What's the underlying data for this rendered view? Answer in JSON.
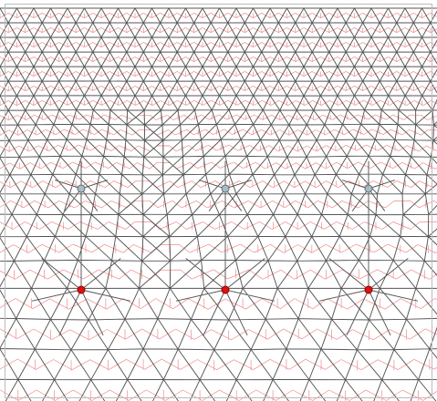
{
  "diagram": {
    "type": "triangulated lattice with dual polygon mesh",
    "colors": {
      "background": "#ffffff",
      "lattice_edges": "#555555",
      "dual_mesh": "#f08a8a",
      "defect_top_fill": "#a9bcc6",
      "defect_top_stroke": "#5e6c74",
      "defect_bottom_fill": "#e01010",
      "defect_bottom_stroke": "#8c0000",
      "frame": "#bbbbbb"
    },
    "defect_pairs": 3,
    "defect_top_icon": "grey-vertex-dot",
    "defect_bottom_icon": "red-vertex-dot"
  }
}
